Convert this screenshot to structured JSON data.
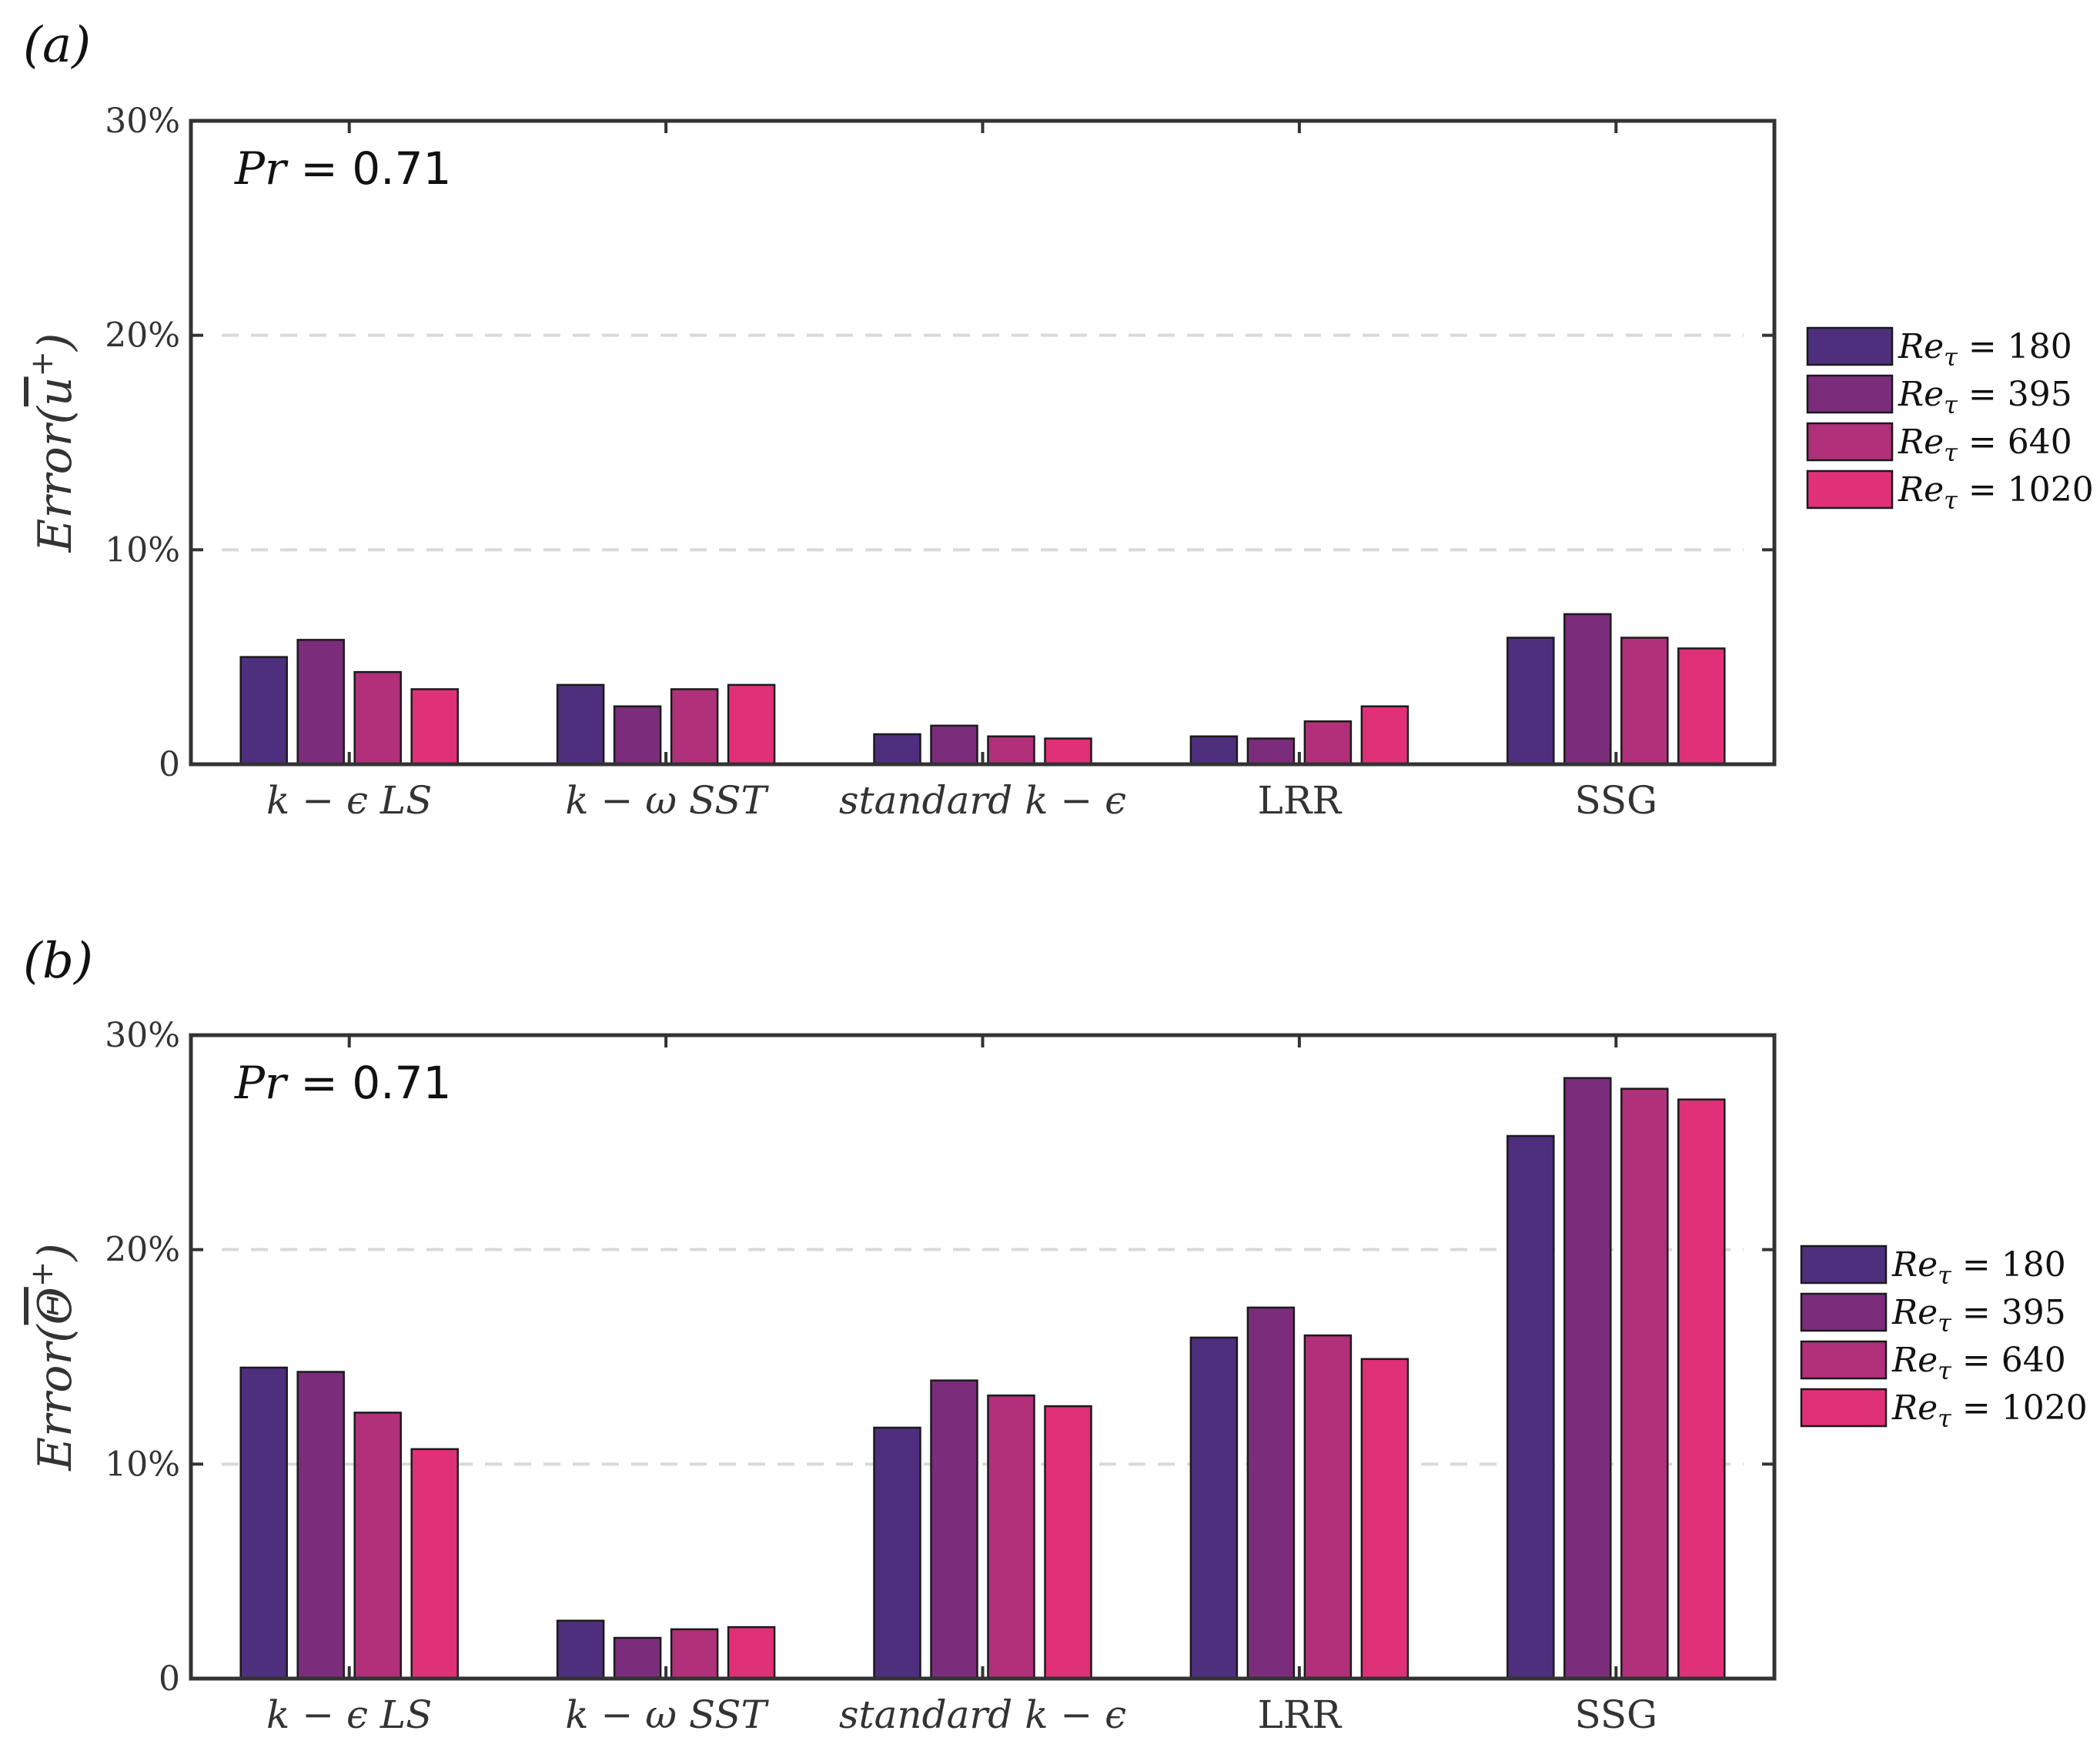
{
  "chart_data": [
    {
      "type": "bar",
      "panel_label": "(a)",
      "annotation": {
        "var": "Pr",
        "eq": " = 0.71"
      },
      "ylabel": {
        "main": "Error(",
        "sym": "u",
        "sup": "+",
        "close": ")"
      },
      "ylim": [
        0,
        30
      ],
      "yticks": [
        "0",
        "10%",
        "20%",
        "30%"
      ],
      "ytick_values": [
        0,
        10,
        20,
        30
      ],
      "grid": "dashed",
      "categories": [
        "k − ϵ LS",
        "k − ω SST",
        "standard k − ϵ",
        "LRR",
        "SSG"
      ],
      "series": [
        {
          "name": "180",
          "values": [
            5.0,
            3.7,
            1.4,
            1.3,
            5.9
          ]
        },
        {
          "name": "395",
          "values": [
            5.8,
            2.7,
            1.8,
            1.2,
            7.0
          ]
        },
        {
          "name": "640",
          "values": [
            4.3,
            3.5,
            1.3,
            2.0,
            5.9
          ]
        },
        {
          "name": "1020",
          "values": [
            3.5,
            3.7,
            1.2,
            2.7,
            5.4
          ]
        }
      ],
      "legend": {
        "placement": "right",
        "prefix": "Re",
        "sub": "τ",
        "eq": " = "
      }
    },
    {
      "type": "bar",
      "panel_label": "(b)",
      "annotation": {
        "var": "Pr",
        "eq": " = 0.71"
      },
      "ylabel": {
        "main": "Error(",
        "sym": "Θ",
        "sup": "+",
        "close": ")"
      },
      "ylim": [
        0,
        30
      ],
      "yticks": [
        "0",
        "10%",
        "20%",
        "30%"
      ],
      "ytick_values": [
        0,
        10,
        20,
        30
      ],
      "grid": "dashed",
      "categories": [
        "k − ϵ LS",
        "k − ω SST",
        "standard k − ϵ",
        "LRR",
        "SSG"
      ],
      "series": [
        {
          "name": "180",
          "values": [
            14.5,
            2.7,
            11.7,
            15.9,
            25.3
          ]
        },
        {
          "name": "395",
          "values": [
            14.3,
            1.9,
            13.9,
            17.3,
            28.0
          ]
        },
        {
          "name": "640",
          "values": [
            12.4,
            2.3,
            13.2,
            16.0,
            27.5
          ]
        },
        {
          "name": "1020",
          "values": [
            10.7,
            2.4,
            12.7,
            14.9,
            27.0
          ]
        }
      ],
      "legend": {
        "placement": "right",
        "prefix": "Re",
        "sub": "τ",
        "eq": " = "
      }
    }
  ],
  "colors": [
    "#4e2f7d",
    "#7b2d7c",
    "#b0307a",
    "#e03078"
  ],
  "category_upright": [
    false,
    false,
    false,
    true,
    true
  ]
}
